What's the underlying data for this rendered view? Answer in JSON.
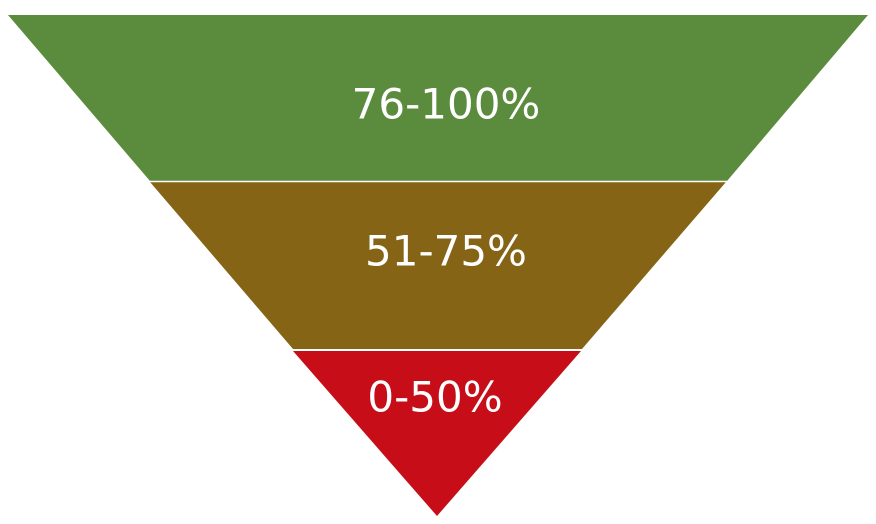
{
  "funnel": {
    "tiers": [
      {
        "label": "76-100%",
        "color": "#5b8c3e"
      },
      {
        "label": "51-75%",
        "color": "#866416"
      },
      {
        "label": "0-50%",
        "color": "#c70d17"
      }
    ],
    "separator_color": "#ffffff"
  }
}
